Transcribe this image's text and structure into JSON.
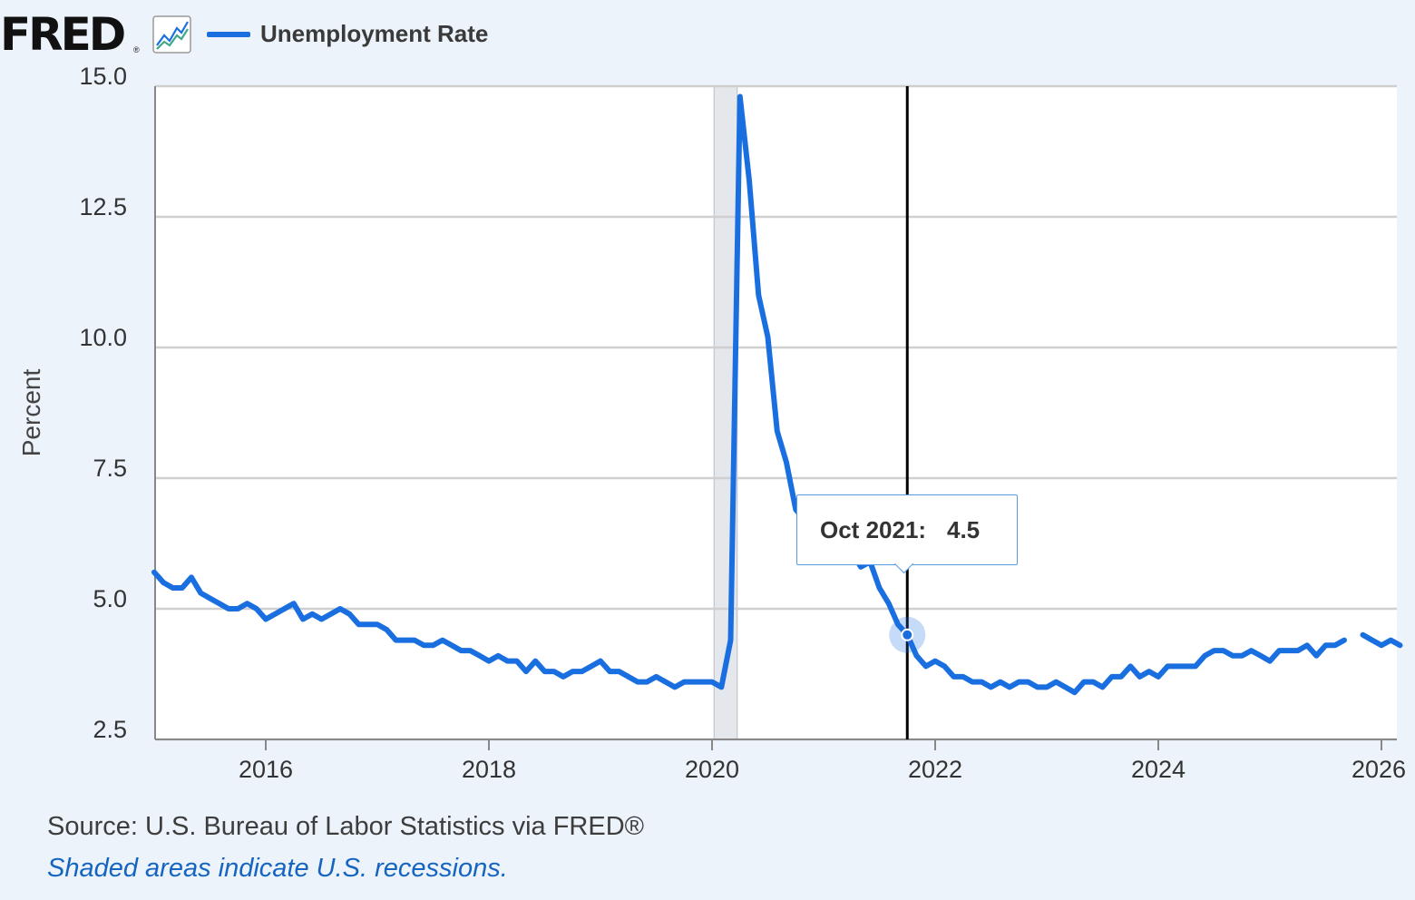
{
  "header": {
    "logo_text": "FRED",
    "logo_reg": "®",
    "logo_icon": "line-chart-icon"
  },
  "colors": {
    "series": "#1a6fe0",
    "grid": "#cfcfcf",
    "background": "#edf3fb",
    "plot_background": "#ffffff",
    "recession": "#e4e7eb",
    "crosshair": "#000000"
  },
  "chart_data": {
    "type": "line",
    "ylabel": "Percent",
    "xlabel": "",
    "ylim": [
      2.5,
      15.0
    ],
    "yticks": [
      "15.0",
      "12.5",
      "10.0",
      "7.5",
      "5.0",
      "2.5"
    ],
    "ytick_values": [
      15.0,
      12.5,
      10.0,
      7.5,
      5.0,
      2.5
    ],
    "xlim": [
      "2015-01",
      "2026-02"
    ],
    "xticks": [
      "2016",
      "2018",
      "2020",
      "2022",
      "2024",
      "2026"
    ],
    "grid": true,
    "legend": "top-left",
    "recessions": [
      {
        "start": "2020-02",
        "end": "2020-04"
      }
    ],
    "series": [
      {
        "name": "Unemployment Rate",
        "start": "2015-01",
        "frequency": "monthly",
        "missing": [
          "2025-10"
        ],
        "values": [
          5.7,
          5.5,
          5.4,
          5.4,
          5.6,
          5.3,
          5.2,
          5.1,
          5.0,
          5.0,
          5.1,
          5.0,
          4.8,
          4.9,
          5.0,
          5.1,
          4.8,
          4.9,
          4.8,
          4.9,
          5.0,
          4.9,
          4.7,
          4.7,
          4.7,
          4.6,
          4.4,
          4.4,
          4.4,
          4.3,
          4.3,
          4.4,
          4.3,
          4.2,
          4.2,
          4.1,
          4.0,
          4.1,
          4.0,
          4.0,
          3.8,
          4.0,
          3.8,
          3.8,
          3.7,
          3.8,
          3.8,
          3.9,
          4.0,
          3.8,
          3.8,
          3.7,
          3.6,
          3.6,
          3.7,
          3.6,
          3.5,
          3.6,
          3.6,
          3.6,
          3.6,
          3.5,
          4.4,
          14.8,
          13.2,
          11.0,
          10.2,
          8.4,
          7.8,
          6.9,
          6.7,
          6.7,
          6.4,
          6.2,
          6.1,
          6.1,
          5.8,
          5.9,
          5.4,
          5.1,
          4.7,
          4.5,
          4.1,
          3.9,
          4.0,
          3.9,
          3.7,
          3.7,
          3.6,
          3.6,
          3.5,
          3.6,
          3.5,
          3.6,
          3.6,
          3.5,
          3.5,
          3.6,
          3.5,
          3.4,
          3.6,
          3.6,
          3.5,
          3.7,
          3.7,
          3.9,
          3.7,
          3.8,
          3.7,
          3.9,
          3.9,
          3.9,
          3.9,
          4.1,
          4.2,
          4.2,
          4.1,
          4.1,
          4.2,
          4.1,
          4.0,
          4.2,
          4.2,
          4.2,
          4.3,
          4.1,
          4.3,
          4.3,
          4.4,
          null,
          4.5,
          4.4,
          4.3,
          4.4,
          4.3
        ]
      }
    ],
    "highlight": {
      "date": "2021-10",
      "value": 4.5
    }
  },
  "tooltip": {
    "date": "Oct 2021:",
    "value": "4.5"
  },
  "footer": {
    "source": "Source: U.S. Bureau of Labor Statistics via FRED®",
    "note": "Shaded areas indicate U.S. recessions."
  }
}
